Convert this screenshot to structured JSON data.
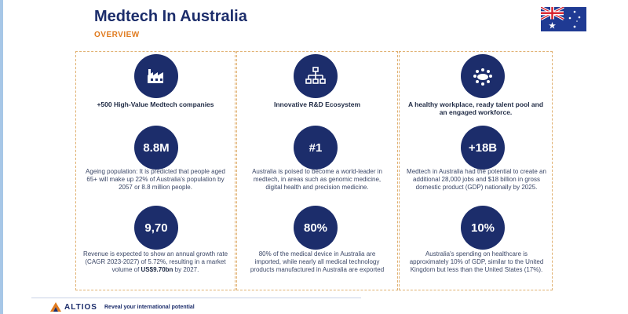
{
  "header": {
    "title": "Medtech In Australia",
    "subtitle": "OVERVIEW"
  },
  "flag": {
    "icon": "australia-flag"
  },
  "columns": [
    {
      "icon": "factory-icon",
      "heading": "+500 High-Value Medtech companies",
      "stat1": "8.8M",
      "text1": "Ageing population: It is predicted that people aged 65+ will make up 22% of Australia's population by 2057 or 8.8 million people.",
      "stat2": "9,70",
      "text2_pre": "Revenue is expected to show an annual growth rate (CAGR 2023-2027) of 5.72%, resulting in a market volume of ",
      "text2_bold": "US$9.70bn",
      "text2_post": " by 2027."
    },
    {
      "icon": "network-icon",
      "heading": "Innovative R&D Ecosystem",
      "stat1": "#1",
      "text1": "Australia is poised to become a world-leader in medtech, in areas such as genomic medicine, digital health and precision medicine.",
      "stat2": "80%",
      "text2": "80% of the medical device in Australia are imported, while nearly all medical technology products manufactured in Australia are exported"
    },
    {
      "icon": "team-icon",
      "heading": "A healthy workplace, ready talent pool and an engaged workforce.",
      "stat1": "+18B",
      "text1": "Medtech in Australia had the potential to create an additional 28,000 jobs and $18 billion in gross domestic product (GDP) nationally by 2025.",
      "stat2": "10%",
      "text2": "Australia's spending on healthcare is approximately 10% of GDP, similar to the United Kingdom but less than the United States (17%)."
    }
  ],
  "footer": {
    "brand": "ALTIOS",
    "tagline": "Reveal your international potential"
  },
  "colors": {
    "navy": "#1c2d6b",
    "orange": "#e07b1f",
    "border": "#e0b070"
  }
}
